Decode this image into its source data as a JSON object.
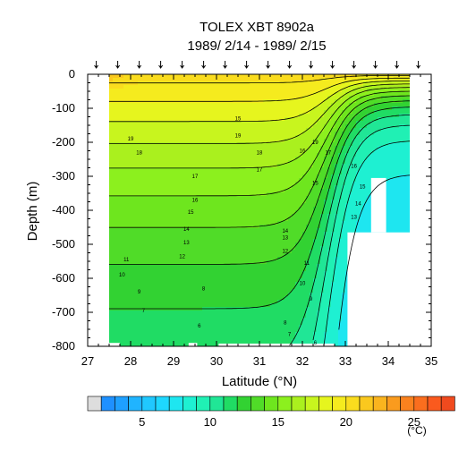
{
  "chart_data": {
    "type": "heatmap",
    "title": "TOLEX XBT 8902a",
    "subtitle": "1989/ 2/14 - 1989/ 2/15",
    "xlabel": "Latitude (°N)",
    "ylabel": "Depth (m)",
    "xlim": [
      27,
      35
    ],
    "ylim": [
      -800,
      0
    ],
    "x_ticks": [
      "27",
      "28",
      "29",
      "30",
      "31",
      "32",
      "33",
      "34",
      "35"
    ],
    "y_ticks": [
      "0",
      "-100",
      "-200",
      "-300",
      "-400",
      "-500",
      "-600",
      "-700",
      "-800"
    ],
    "station_latitudes": [
      27.2,
      27.7,
      28.2,
      28.7,
      29.2,
      29.7,
      30.2,
      30.7,
      31.2,
      31.7,
      32.2,
      32.7,
      33.2,
      33.7,
      34.2,
      34.7
    ],
    "contour_levels": [
      5,
      6,
      7,
      8,
      9,
      10,
      11,
      12,
      13,
      14,
      15,
      16,
      17,
      18,
      19,
      20
    ],
    "contour_labels": [
      {
        "text": "19",
        "lat": 28.0,
        "depth": -190
      },
      {
        "text": "18",
        "lat": 28.2,
        "depth": -230
      },
      {
        "text": "17",
        "lat": 29.5,
        "depth": -300
      },
      {
        "text": "16",
        "lat": 29.5,
        "depth": -370
      },
      {
        "text": "15",
        "lat": 29.4,
        "depth": -405
      },
      {
        "text": "14",
        "lat": 29.3,
        "depth": -455
      },
      {
        "text": "13",
        "lat": 29.3,
        "depth": -495
      },
      {
        "text": "12",
        "lat": 29.2,
        "depth": -535
      },
      {
        "text": "11",
        "lat": 27.9,
        "depth": -545
      },
      {
        "text": "10",
        "lat": 27.8,
        "depth": -590
      },
      {
        "text": "9",
        "lat": 28.2,
        "depth": -640
      },
      {
        "text": "8",
        "lat": 29.7,
        "depth": -630
      },
      {
        "text": "7",
        "lat": 28.3,
        "depth": -695
      },
      {
        "text": "6",
        "lat": 29.6,
        "depth": -740
      },
      {
        "text": "19",
        "lat": 30.5,
        "depth": -180
      },
      {
        "text": "18",
        "lat": 31.0,
        "depth": -230
      },
      {
        "text": "17",
        "lat": 31.0,
        "depth": -280
      },
      {
        "text": "16",
        "lat": 32.0,
        "depth": -225
      },
      {
        "text": "15",
        "lat": 32.3,
        "depth": -320
      },
      {
        "text": "14",
        "lat": 31.6,
        "depth": -460
      },
      {
        "text": "13",
        "lat": 31.6,
        "depth": -480
      },
      {
        "text": "12",
        "lat": 31.6,
        "depth": -520
      },
      {
        "text": "11",
        "lat": 32.1,
        "depth": -555
      },
      {
        "text": "10",
        "lat": 32.0,
        "depth": -615
      },
      {
        "text": "9",
        "lat": 32.2,
        "depth": -660
      },
      {
        "text": "8",
        "lat": 31.6,
        "depth": -730
      },
      {
        "text": "7",
        "lat": 31.7,
        "depth": -765
      },
      {
        "text": "6",
        "lat": 32.3,
        "depth": -790
      },
      {
        "text": "15",
        "lat": 30.5,
        "depth": -130
      },
      {
        "text": "19",
        "lat": 32.3,
        "depth": -200
      },
      {
        "text": "17",
        "lat": 32.6,
        "depth": -230
      },
      {
        "text": "16",
        "lat": 33.2,
        "depth": -270
      },
      {
        "text": "15",
        "lat": 33.4,
        "depth": -330
      },
      {
        "text": "14",
        "lat": 33.3,
        "depth": -380
      },
      {
        "text": "13",
        "lat": 33.2,
        "depth": -420
      }
    ],
    "colorbar": {
      "ticks": [
        "5",
        "10",
        "15",
        "20",
        "25"
      ],
      "unit": "(°C)",
      "min": 2,
      "max": 28,
      "step": 1,
      "colors": [
        "#1e90ff",
        "#1ea0ff",
        "#20b4ff",
        "#20c8ff",
        "#1ed7ff",
        "#1ee6f0",
        "#1ef0d2",
        "#20f0b4",
        "#20e696",
        "#20dc64",
        "#32d232",
        "#50dc28",
        "#6ee61e",
        "#8cf01e",
        "#aaf01e",
        "#c8f51e",
        "#e6f51e",
        "#f5eb1e",
        "#fadc1e",
        "#fac81e",
        "#fab41e",
        "#fa9b1e",
        "#fa821e",
        "#fa6e1e",
        "#fa5a1e",
        "#f04a1e"
      ],
      "missing_color": "#dddddd"
    }
  }
}
